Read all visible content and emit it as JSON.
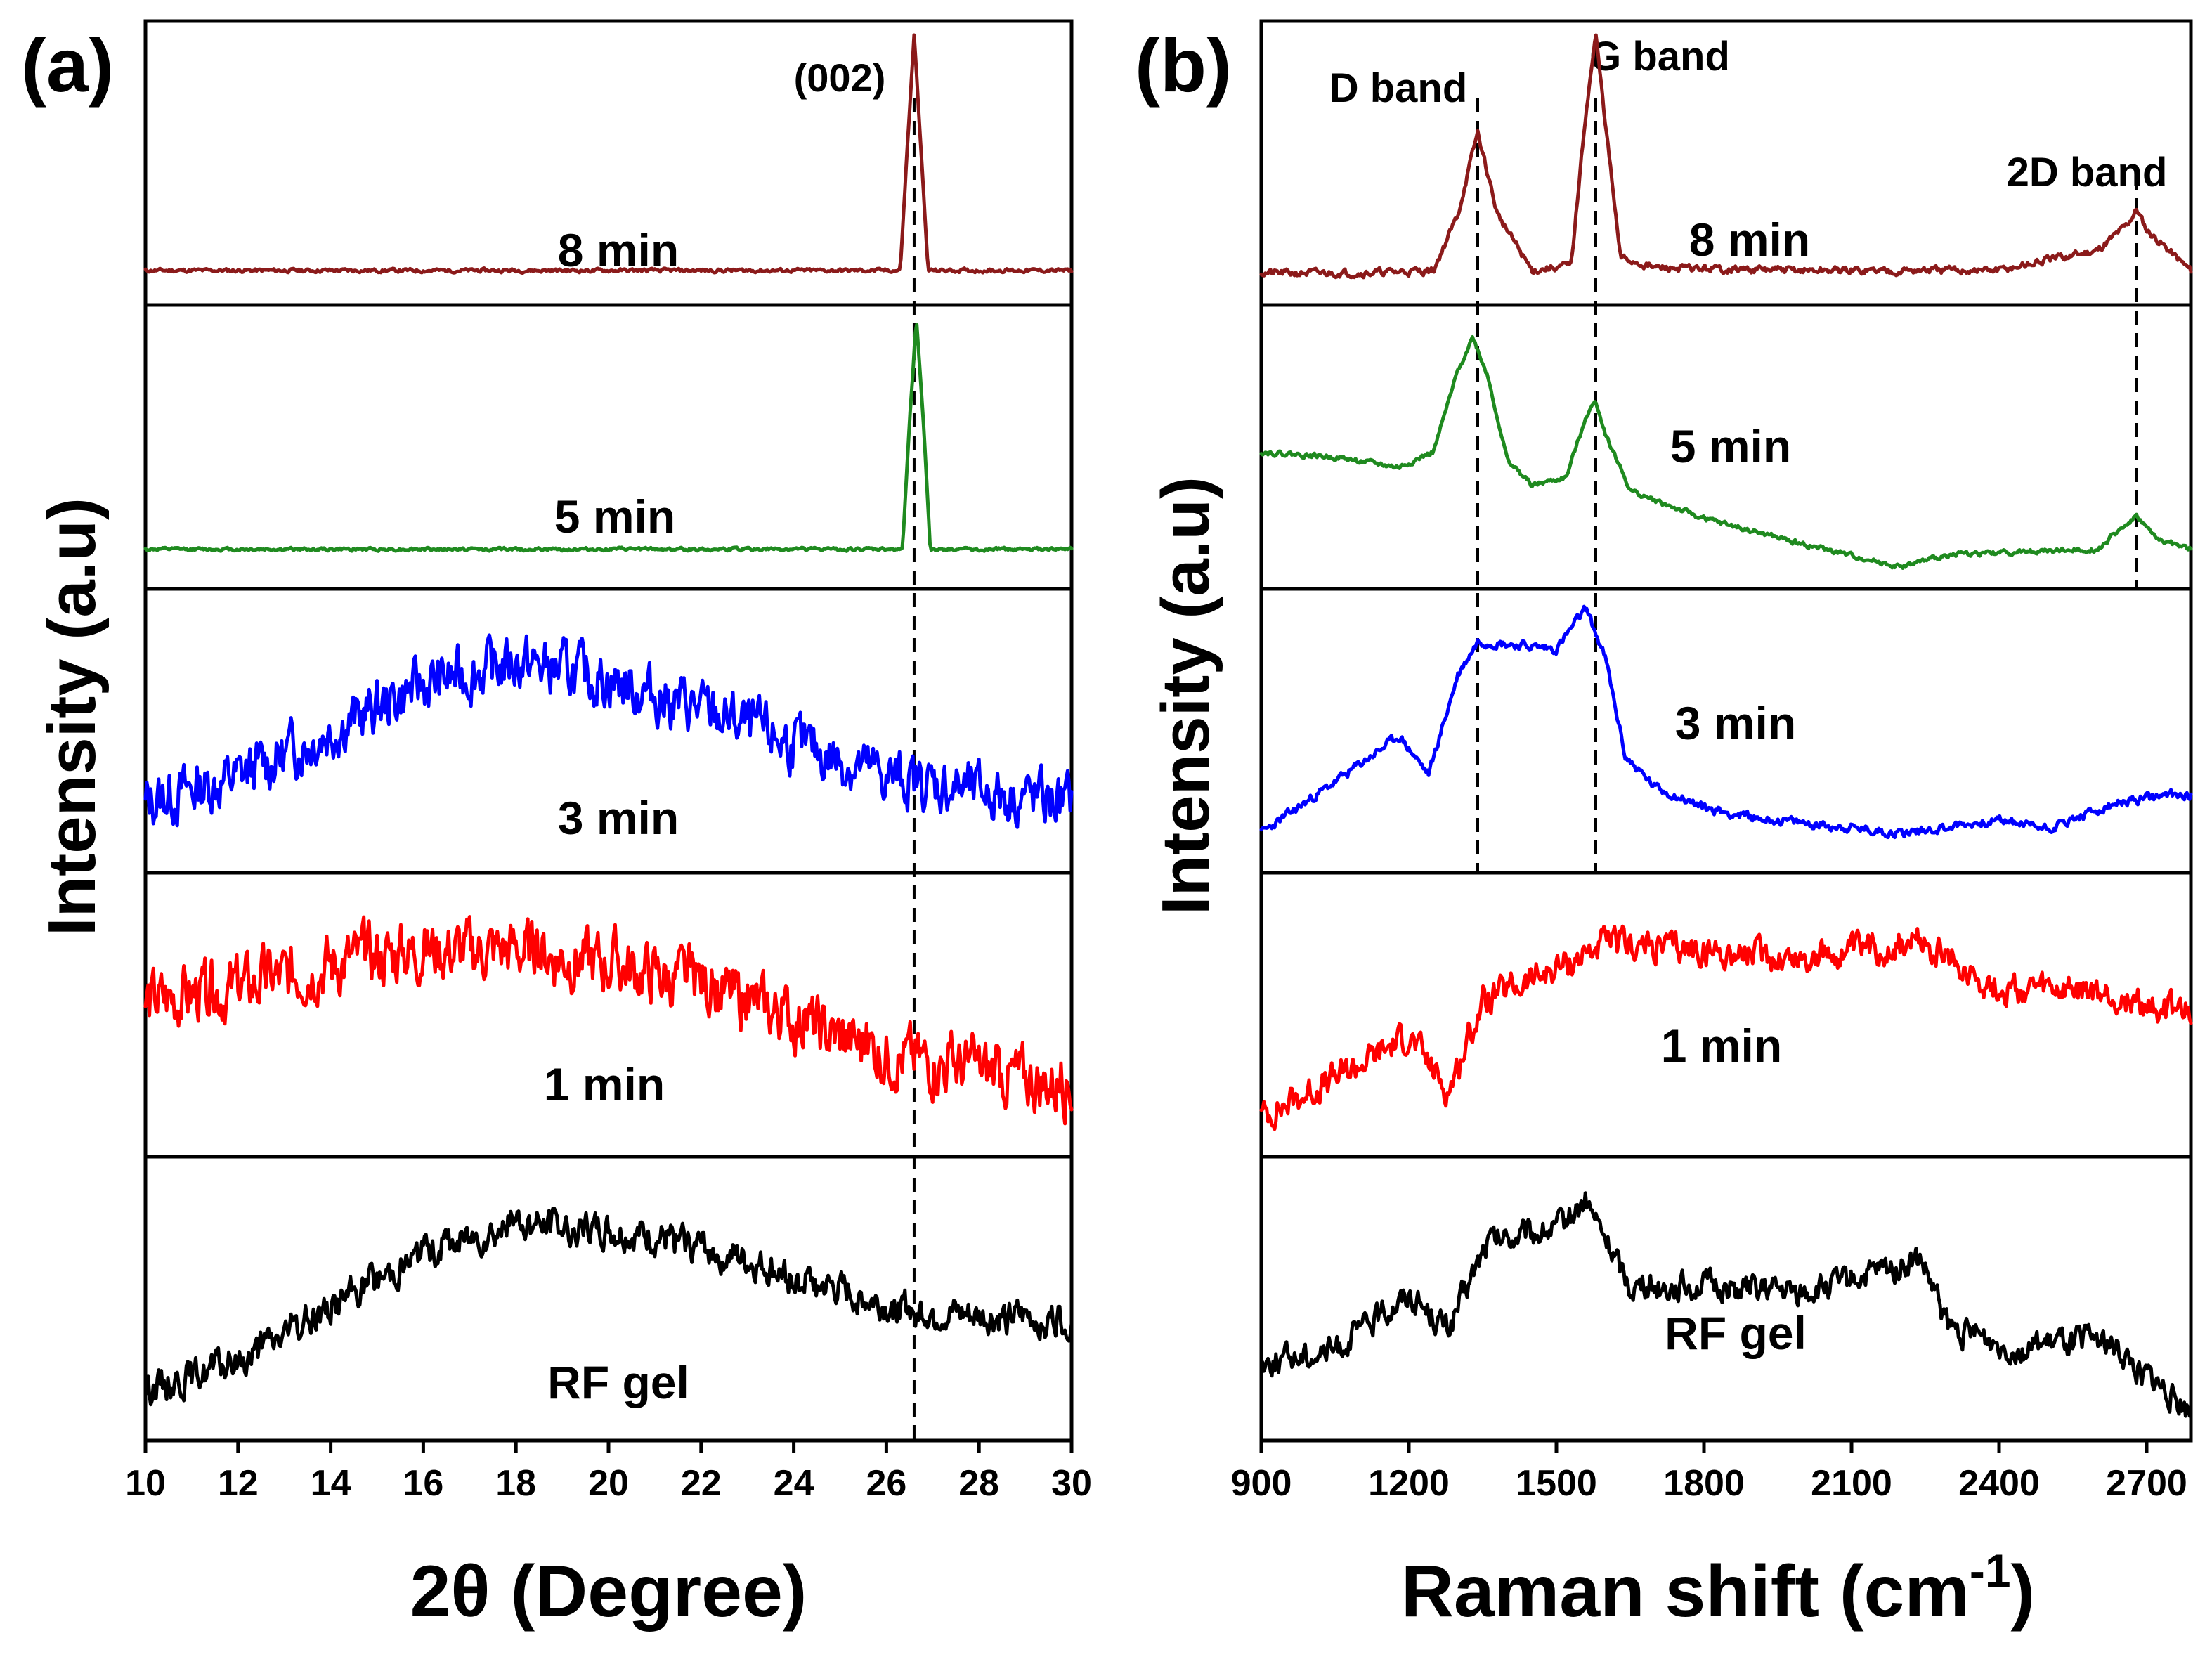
{
  "chart_data": [
    {
      "type": "line",
      "panel_label": "(a)",
      "xlabel": "2θ (Degree)",
      "ylabel": "Intensity (a.u)",
      "xlim": [
        10,
        30
      ],
      "xticks": [
        10,
        12,
        14,
        16,
        18,
        20,
        22,
        24,
        26,
        28,
        30
      ],
      "reference_lines": [
        26.6
      ],
      "annotations": [
        {
          "text": "(002)",
          "x": 26.6
        }
      ],
      "series": [
        {
          "name": "8 min",
          "color": "#8b1a1a",
          "baseline": 0.08,
          "noise": 0.006,
          "seed": 11,
          "x": [
            10,
            26.3,
            26.45,
            26.6,
            26.75,
            26.9,
            30
          ],
          "y": [
            0.08,
            0.08,
            0.55,
            1.0,
            0.55,
            0.08,
            0.08
          ]
        },
        {
          "name": "5 min",
          "color": "#1f8a1f",
          "baseline": 0.1,
          "noise": 0.005,
          "seed": 12,
          "x": [
            10,
            26.35,
            26.5,
            26.65,
            26.8,
            26.95,
            30
          ],
          "y": [
            0.1,
            0.1,
            0.6,
            1.0,
            0.6,
            0.1,
            0.1
          ]
        },
        {
          "name": "3 min",
          "color": "#0000ff",
          "baseline": 0,
          "noise": 0.09,
          "seed": 13,
          "x": [
            10,
            12,
            14,
            16,
            18,
            20,
            22,
            24,
            26,
            28,
            30
          ],
          "y": [
            0.22,
            0.32,
            0.5,
            0.68,
            0.77,
            0.7,
            0.58,
            0.45,
            0.32,
            0.26,
            0.22
          ]
        },
        {
          "name": "1 min",
          "color": "#ff0000",
          "baseline": 0,
          "noise": 0.1,
          "seed": 14,
          "x": [
            10,
            12,
            14,
            16,
            18,
            20,
            22,
            24,
            26,
            28,
            30
          ],
          "y": [
            0.55,
            0.6,
            0.7,
            0.75,
            0.76,
            0.7,
            0.62,
            0.48,
            0.35,
            0.28,
            0.22
          ]
        },
        {
          "name": "RF gel",
          "color": "#000000",
          "baseline": 0,
          "noise": 0.055,
          "seed": 15,
          "x": [
            10,
            12,
            14,
            16,
            18,
            20,
            22,
            24,
            26,
            28,
            30
          ],
          "y": [
            0.15,
            0.25,
            0.47,
            0.68,
            0.8,
            0.76,
            0.7,
            0.58,
            0.47,
            0.42,
            0.42
          ]
        }
      ]
    },
    {
      "type": "line",
      "panel_label": "(b)",
      "xlabel": "Raman shift (cm",
      "xlabel_superscript": "-1",
      "xlabel_suffix": ")",
      "ylabel": "Intensity (a.u)",
      "xlim": [
        900,
        2790
      ],
      "xticks": [
        900,
        1200,
        1500,
        1800,
        2100,
        2400,
        2700
      ],
      "reference_lines": [
        {
          "x": 1340,
          "from": 0,
          "to": 2
        },
        {
          "x": 1580,
          "from": 0,
          "to": 2
        },
        {
          "x": 2680,
          "from": 0,
          "to": 1
        }
      ],
      "annotations": [
        {
          "text": "D band",
          "x": 1340
        },
        {
          "text": "G band",
          "x": 1580
        },
        {
          "text": "2D band",
          "x": 2680
        }
      ],
      "series": [
        {
          "name": "8 min",
          "color": "#8b1a1a",
          "baseline": 0,
          "noise": 0.012,
          "seed": 21,
          "x": [
            900,
            1100,
            1250,
            1300,
            1340,
            1380,
            1450,
            1530,
            1560,
            1580,
            1600,
            1630,
            1700,
            2000,
            2400,
            2600,
            2660,
            2680,
            2700,
            2790
          ],
          "y": [
            0.07,
            0.07,
            0.08,
            0.3,
            0.62,
            0.3,
            0.08,
            0.1,
            0.7,
            1.0,
            0.65,
            0.13,
            0.09,
            0.08,
            0.08,
            0.16,
            0.26,
            0.32,
            0.24,
            0.08
          ]
        },
        {
          "name": "5 min",
          "color": "#1f8a1f",
          "baseline": 0,
          "noise": 0.008,
          "seed": 22,
          "x": [
            900,
            1050,
            1180,
            1250,
            1300,
            1330,
            1360,
            1400,
            1450,
            1520,
            1560,
            1580,
            1600,
            1650,
            1700,
            1800,
            2000,
            2200,
            2300,
            2600,
            2660,
            2680,
            2720,
            2790
          ],
          "y": [
            0.48,
            0.46,
            0.42,
            0.48,
            0.8,
            0.93,
            0.78,
            0.45,
            0.35,
            0.38,
            0.62,
            0.68,
            0.55,
            0.33,
            0.29,
            0.22,
            0.12,
            0.03,
            0.08,
            0.1,
            0.2,
            0.23,
            0.14,
            0.1
          ]
        },
        {
          "name": "3 min",
          "color": "#0000ff",
          "baseline": 0,
          "noise": 0.015,
          "seed": 23,
          "x": [
            900,
            1050,
            1180,
            1240,
            1300,
            1340,
            1400,
            1500,
            1560,
            1600,
            1640,
            1700,
            1800,
            1900,
            2000,
            2200,
            2400,
            2500,
            2650,
            2750
          ],
          "y": [
            0.1,
            0.3,
            0.48,
            0.33,
            0.72,
            0.85,
            0.84,
            0.82,
            0.98,
            0.78,
            0.4,
            0.28,
            0.2,
            0.16,
            0.14,
            0.1,
            0.15,
            0.12,
            0.22,
            0.25
          ]
        },
        {
          "name": "1 min",
          "color": "#ff0000",
          "baseline": 0,
          "noise": 0.05,
          "seed": 24,
          "x": [
            900,
            1050,
            1200,
            1280,
            1350,
            1500,
            1600,
            1800,
            2000,
            2240,
            2400,
            2600,
            2790
          ],
          "y": [
            0.1,
            0.25,
            0.42,
            0.2,
            0.55,
            0.68,
            0.78,
            0.75,
            0.72,
            0.78,
            0.6,
            0.58,
            0.5
          ]
        },
        {
          "name": "RF gel",
          "color": "#000000",
          "baseline": 0,
          "noise": 0.045,
          "seed": 25,
          "x": [
            900,
            1050,
            1200,
            1280,
            1360,
            1500,
            1560,
            1650,
            1800,
            2000,
            2240,
            2300,
            2450,
            2600,
            2700,
            2790
          ],
          "y": [
            0.25,
            0.3,
            0.52,
            0.38,
            0.72,
            0.77,
            0.88,
            0.55,
            0.55,
            0.52,
            0.65,
            0.38,
            0.3,
            0.35,
            0.2,
            0.05
          ]
        }
      ]
    }
  ]
}
